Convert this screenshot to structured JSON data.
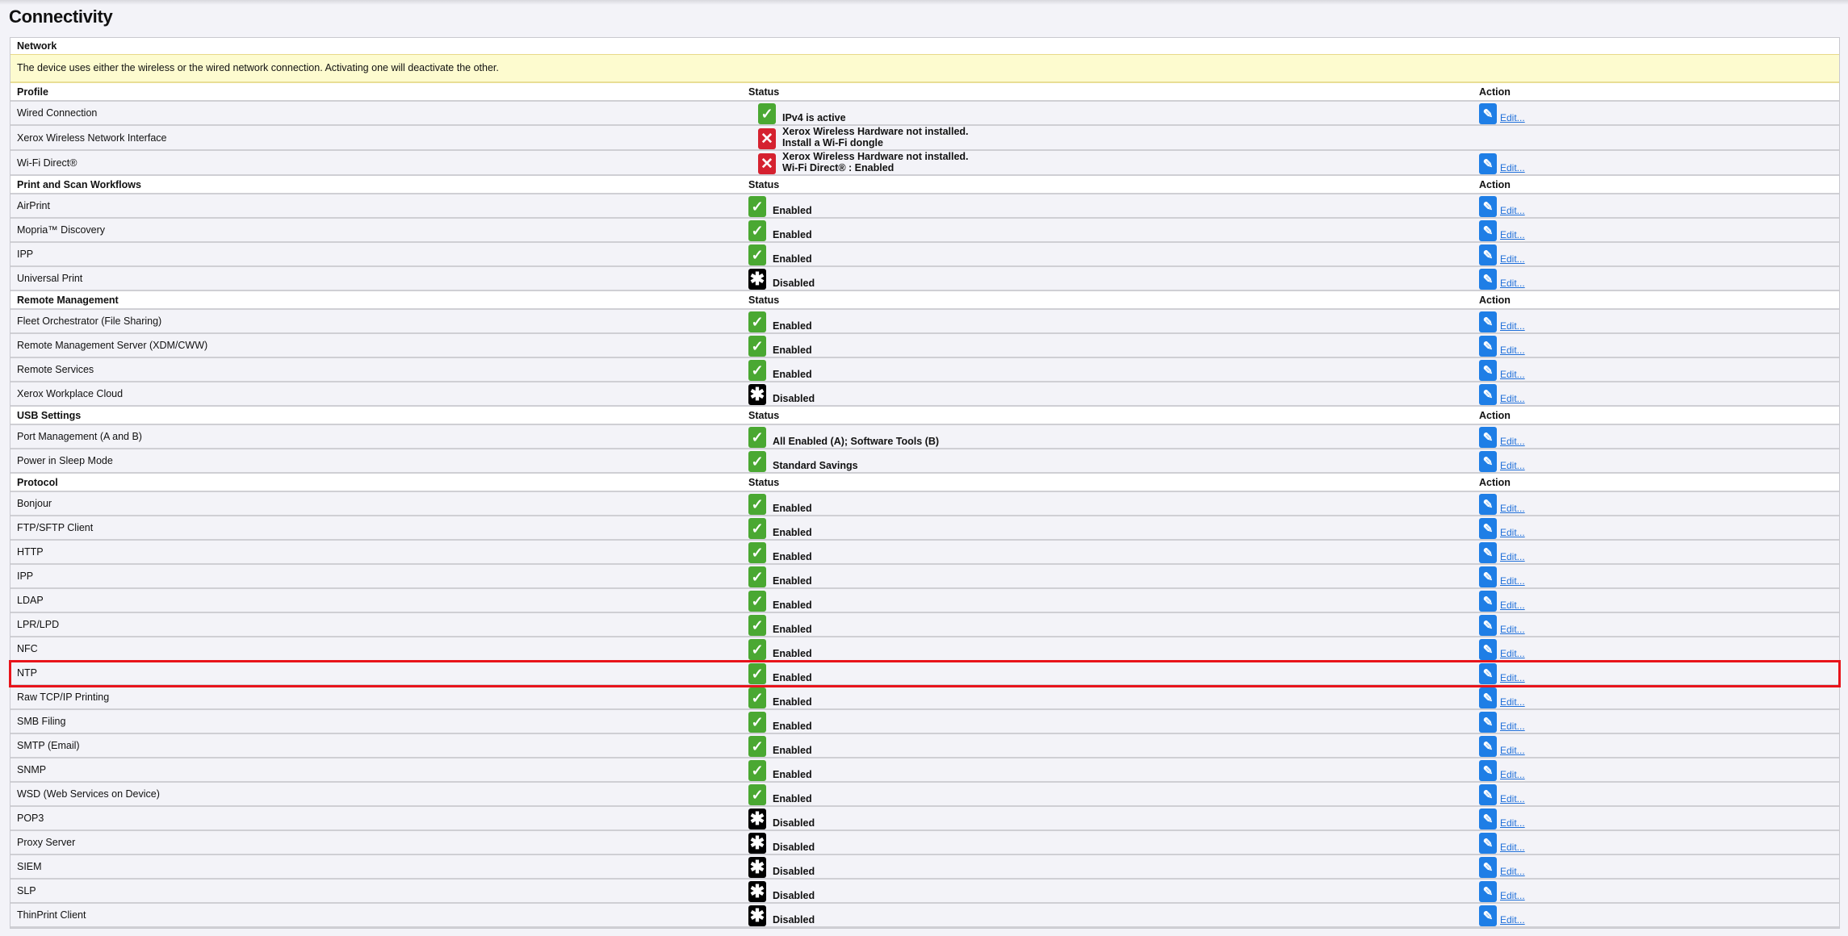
{
  "page_title": "Connectivity",
  "colors": {
    "enabled": "#4aa832",
    "error": "#d5212f",
    "disabled": "#000000",
    "edit": "#1e7ee6",
    "highlight": "#e8141b",
    "notice": "#fdfbcf"
  },
  "network": {
    "title": "Network",
    "notice": "The device uses either the wireless or the wired network connection. Activating one will deactivate the other."
  },
  "edit_label": "Edit...",
  "sections": [
    {
      "header": "Profile",
      "status_header": "Status",
      "action_header": "Action",
      "indent": true,
      "rows": [
        {
          "name": "Wired Connection",
          "status": "ok",
          "lines": [
            "IPv4 is active"
          ],
          "edit": true
        },
        {
          "name": "Xerox Wireless Network Interface",
          "status": "err",
          "lines": [
            "Xerox Wireless Hardware not installed.",
            "Install a Wi-Fi dongle"
          ],
          "edit": false
        },
        {
          "name": "Wi-Fi Direct®",
          "status": "err",
          "lines": [
            "Xerox Wireless Hardware not installed.",
            "Wi-Fi Direct® : Enabled"
          ],
          "edit": true
        }
      ]
    },
    {
      "header": "Print and Scan Workflows",
      "status_header": "Status",
      "action_header": "Action",
      "rows": [
        {
          "name": "AirPrint",
          "status": "ok",
          "lines": [
            "Enabled"
          ],
          "edit": true
        },
        {
          "name": "Mopria™ Discovery",
          "status": "ok",
          "lines": [
            "Enabled"
          ],
          "edit": true
        },
        {
          "name": "IPP",
          "status": "ok",
          "lines": [
            "Enabled"
          ],
          "edit": true
        },
        {
          "name": "Universal Print",
          "status": "dis",
          "lines": [
            "Disabled"
          ],
          "edit": true
        }
      ]
    },
    {
      "header": "Remote Management",
      "status_header": "Status",
      "action_header": "Action",
      "rows": [
        {
          "name": "Fleet Orchestrator (File Sharing)",
          "status": "ok",
          "lines": [
            "Enabled"
          ],
          "edit": true
        },
        {
          "name": "Remote Management Server (XDM/CWW)",
          "status": "ok",
          "lines": [
            "Enabled"
          ],
          "edit": true
        },
        {
          "name": "Remote Services",
          "status": "ok",
          "lines": [
            "Enabled"
          ],
          "edit": true
        },
        {
          "name": "Xerox Workplace Cloud",
          "status": "dis",
          "lines": [
            "Disabled"
          ],
          "edit": true
        }
      ]
    },
    {
      "header": "USB Settings",
      "status_header": "Status",
      "action_header": "Action",
      "rows": [
        {
          "name": "Port Management (A and B)",
          "status": "ok",
          "lines": [
            "All Enabled (A); Software Tools (B)"
          ],
          "edit": true
        },
        {
          "name": "Power in Sleep Mode",
          "status": "ok",
          "lines": [
            "Standard Savings"
          ],
          "edit": true
        }
      ]
    },
    {
      "header": "Protocol",
      "status_header": "Status",
      "action_header": "Action",
      "rows": [
        {
          "name": "Bonjour",
          "status": "ok",
          "lines": [
            "Enabled"
          ],
          "edit": true
        },
        {
          "name": "FTP/SFTP Client",
          "status": "ok",
          "lines": [
            "Enabled"
          ],
          "edit": true
        },
        {
          "name": "HTTP",
          "status": "ok",
          "lines": [
            "Enabled"
          ],
          "edit": true
        },
        {
          "name": "IPP",
          "status": "ok",
          "lines": [
            "Enabled"
          ],
          "edit": true
        },
        {
          "name": "LDAP",
          "status": "ok",
          "lines": [
            "Enabled"
          ],
          "edit": true
        },
        {
          "name": "LPR/LPD",
          "status": "ok",
          "lines": [
            "Enabled"
          ],
          "edit": true
        },
        {
          "name": "NFC",
          "status": "ok",
          "lines": [
            "Enabled"
          ],
          "edit": true
        },
        {
          "name": "NTP",
          "status": "ok",
          "lines": [
            "Enabled"
          ],
          "edit": true,
          "highlighted": true
        },
        {
          "name": "Raw TCP/IP Printing",
          "status": "ok",
          "lines": [
            "Enabled"
          ],
          "edit": true
        },
        {
          "name": "SMB Filing",
          "status": "ok",
          "lines": [
            "Enabled"
          ],
          "edit": true
        },
        {
          "name": "SMTP (Email)",
          "status": "ok",
          "lines": [
            "Enabled"
          ],
          "edit": true
        },
        {
          "name": "SNMP",
          "status": "ok",
          "lines": [
            "Enabled"
          ],
          "edit": true
        },
        {
          "name": "WSD (Web Services on Device)",
          "status": "ok",
          "lines": [
            "Enabled"
          ],
          "edit": true
        },
        {
          "name": "POP3",
          "status": "dis",
          "lines": [
            "Disabled"
          ],
          "edit": true
        },
        {
          "name": "Proxy Server",
          "status": "dis",
          "lines": [
            "Disabled"
          ],
          "edit": true
        },
        {
          "name": "SIEM",
          "status": "dis",
          "lines": [
            "Disabled"
          ],
          "edit": true
        },
        {
          "name": "SLP",
          "status": "dis",
          "lines": [
            "Disabled"
          ],
          "edit": true
        },
        {
          "name": "ThinPrint Client",
          "status": "dis",
          "lines": [
            "Disabled"
          ],
          "edit": true
        }
      ]
    }
  ]
}
